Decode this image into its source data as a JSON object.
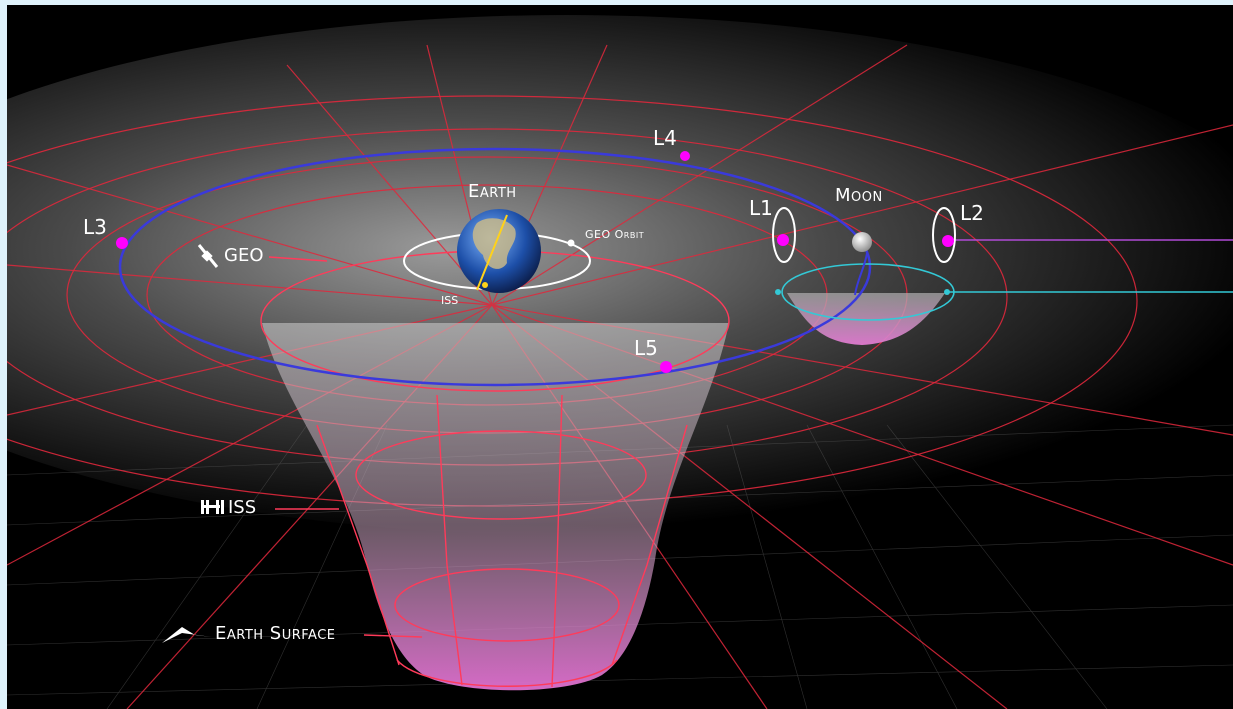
{
  "labels": {
    "earth": "Earth",
    "moon": "Moon",
    "geo_orbit": "GEO Orbit",
    "iss_small": "ISS",
    "geo": "GEO",
    "iss": "ISS",
    "earth_surface": "Earth Surface",
    "l1": "L1",
    "l2": "L2",
    "l3": "L3",
    "l4": "L4",
    "l5": "L5"
  },
  "icons": {
    "geo": "satellite-icon",
    "iss": "space-station-icon",
    "earth_surface": "mountain-icon"
  },
  "colors": {
    "frame": "#dff2fb",
    "background": "#000000",
    "grid": "#e0283c",
    "moon_orbit": "#3a3adb",
    "lagrange_point": "#ff00ff",
    "moon_well_orbit": "#33c9d6",
    "l2_line": "#b04bd6",
    "well_fill": "#e07ad0"
  }
}
